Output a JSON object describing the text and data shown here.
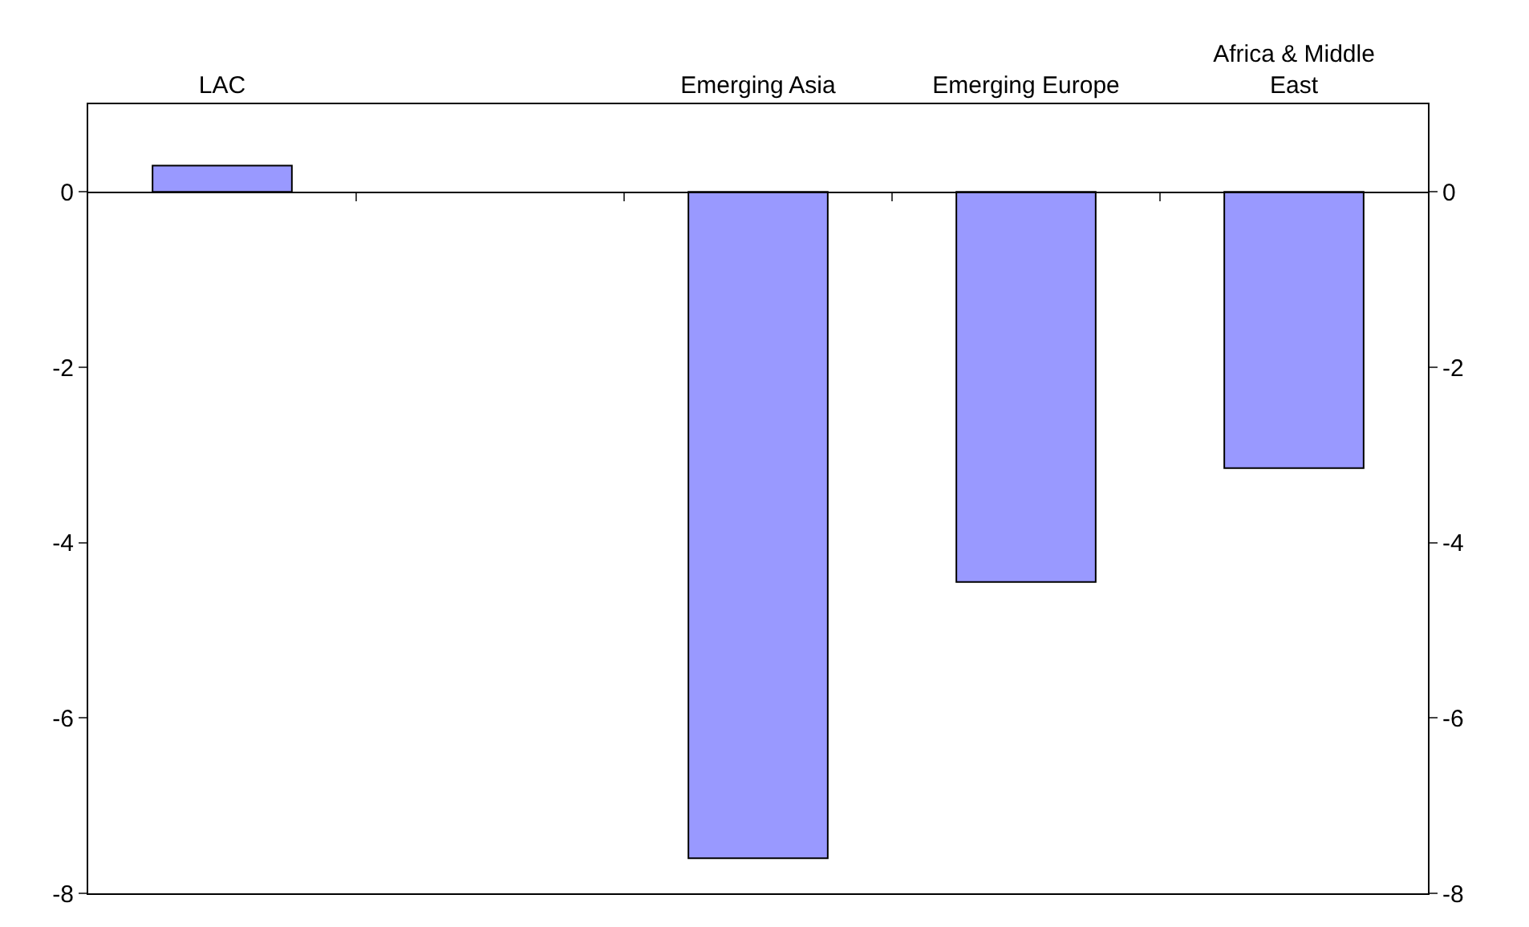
{
  "chart_data": {
    "type": "bar",
    "categories": [
      "LAC",
      null,
      "Emerging Asia",
      "Emerging Europe",
      "Africa & Middle East"
    ],
    "values": [
      0.3,
      null,
      -7.6,
      -4.45,
      -3.15
    ],
    "color": "#9999ff",
    "ylim": [
      -8,
      1
    ],
    "yticks": [
      -8,
      -6,
      -4,
      -2,
      0
    ],
    "y2lim": [
      -8,
      1
    ],
    "y2ticks": [
      -8,
      -6,
      -4,
      -2,
      0
    ]
  }
}
